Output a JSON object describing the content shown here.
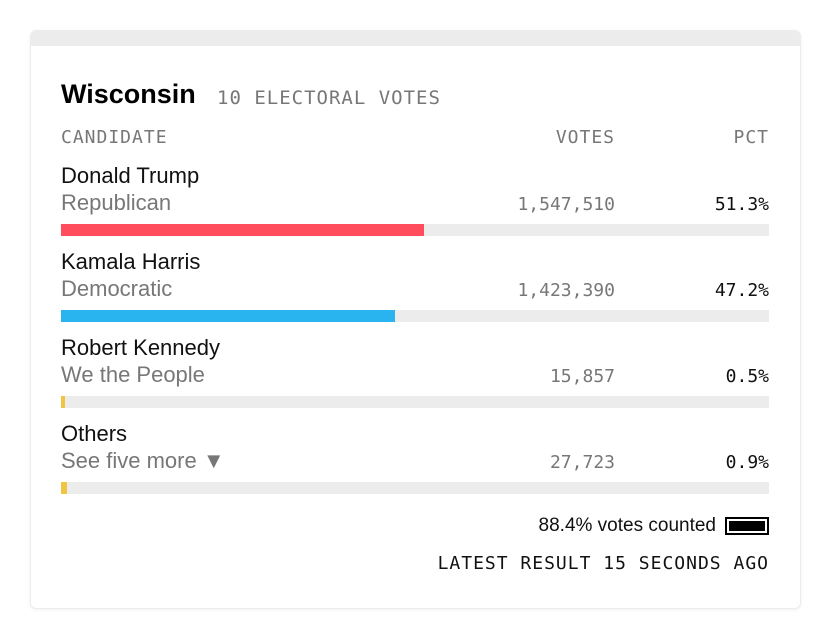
{
  "header": {
    "title": "Wisconsin",
    "subtitle": "10 ELECTORAL VOTES"
  },
  "columns": [
    "CANDIDATE",
    "VOTES",
    "PCT"
  ],
  "bars": {
    "xlim": [
      0,
      100
    ]
  },
  "candidates": [
    {
      "name": "Donald Trump",
      "party": "Republican",
      "votes": "1,547,510",
      "pct": {
        "value": 51.3,
        "label": "51.3%"
      },
      "color": "#ff4d5e"
    },
    {
      "name": "Kamala Harris",
      "party": "Democratic",
      "votes": "1,423,390",
      "pct": {
        "value": 47.2,
        "label": "47.2%"
      },
      "color": "#29b4f0"
    },
    {
      "name": "Robert Kennedy",
      "party": "We the People",
      "votes": "15,857",
      "pct": {
        "value": 0.5,
        "label": "0.5%"
      },
      "color": "#f3c344"
    },
    {
      "name": "Others",
      "party": "See five more ▼",
      "votes": "27,723",
      "pct": {
        "value": 0.9,
        "label": "0.9%"
      },
      "color": "#f3c344"
    }
  ],
  "footer": {
    "counted": "88.4% votes counted",
    "latest": "LATEST RESULT 15 SECONDS AGO"
  }
}
